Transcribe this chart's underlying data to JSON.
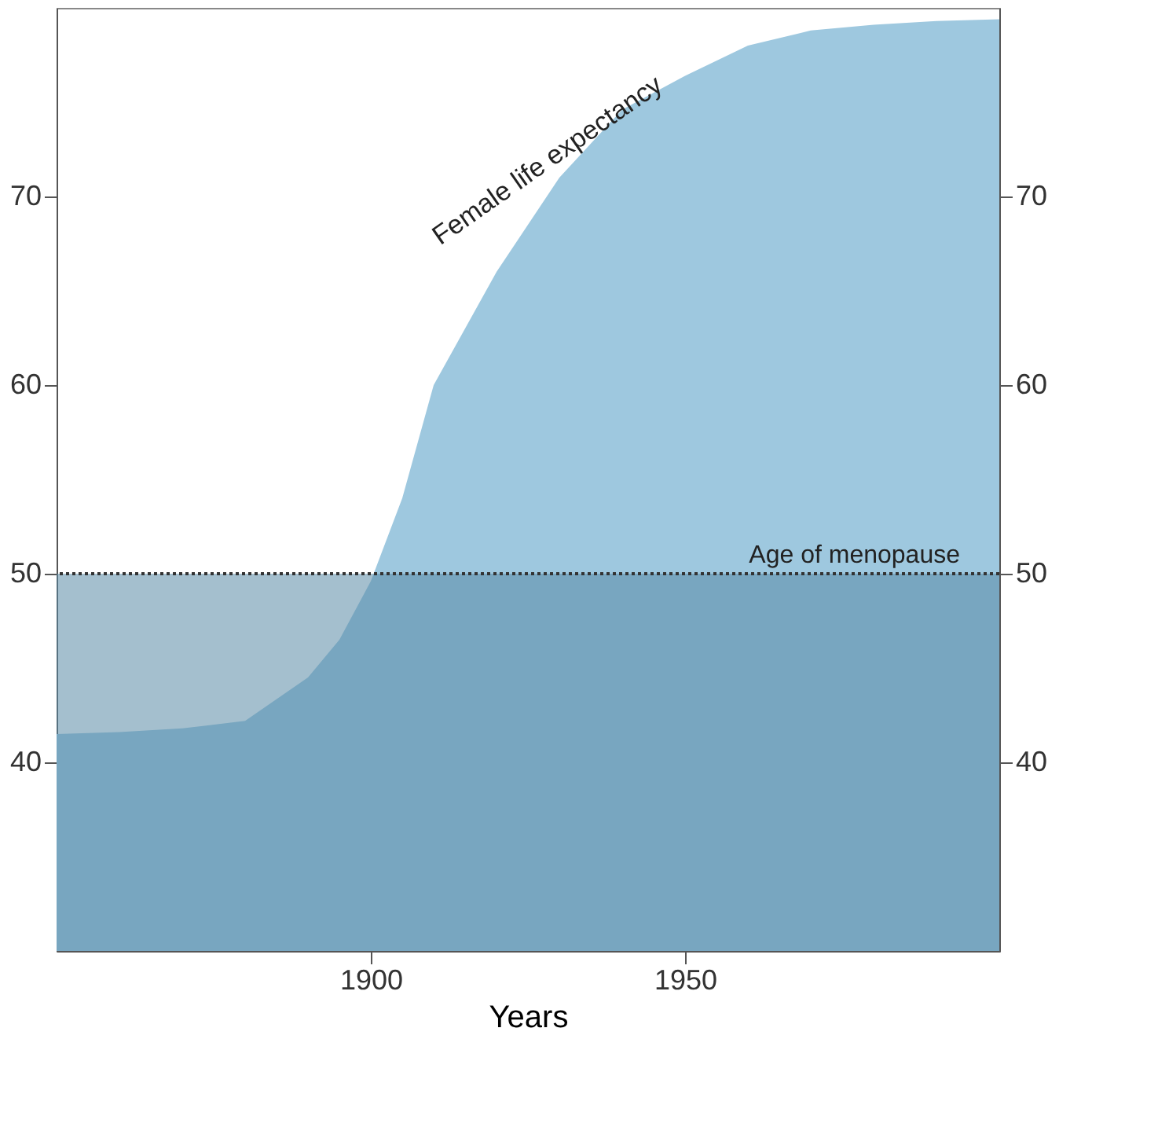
{
  "chart_data": {
    "type": "area",
    "xlabel": "Years",
    "x": [
      1850,
      1860,
      1870,
      1880,
      1890,
      1895,
      1900,
      1905,
      1910,
      1920,
      1930,
      1940,
      1950,
      1960,
      1970,
      1980,
      1990,
      2000
    ],
    "series": [
      {
        "color": "#9ec8df",
        "values": [
          41.5,
          41.6,
          41.8,
          42.2,
          44.5,
          46.5,
          49.6,
          54,
          60,
          66,
          71,
          74.6,
          76.4,
          78,
          78.8,
          79.1,
          79.3,
          79.4
        ]
      }
    ],
    "xlim": [
      1850,
      2000
    ],
    "xticks": [
      1900,
      1950
    ],
    "ylim": [
      30,
      80
    ],
    "yticks": [
      40,
      50,
      60,
      70
    ],
    "y2lim": [
      30,
      80
    ],
    "y2ticks": [
      40,
      50,
      60,
      70
    ],
    "bands": [
      {
        "axis": "y",
        "from": 30,
        "to": 50,
        "color": "#5a8aa6"
      }
    ],
    "ref_lines": [
      {
        "axis": "y",
        "value": 50,
        "label": "Age of menopause",
        "line_style": "dotted",
        "color": "#333333"
      }
    ],
    "annotations": [
      {
        "text": "Female life expectancy",
        "x": 1930,
        "y": 71
      }
    ],
    "grid": false
  }
}
